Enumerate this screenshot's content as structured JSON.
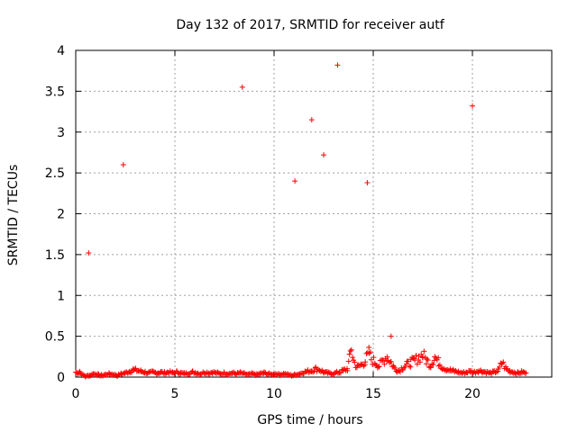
{
  "chart_data": {
    "type": "scatter",
    "title": "Day 132 of 2017, SRMTID for receiver autf",
    "xlabel": "GPS time / hours",
    "ylabel": "SRMTID / TECUs",
    "xlim": [
      0,
      24
    ],
    "ylim": [
      0,
      4
    ],
    "xticks": [
      0,
      5,
      10,
      15,
      20
    ],
    "yticks": [
      0,
      0.5,
      1,
      1.5,
      2,
      2.5,
      3,
      3.5,
      4
    ],
    "xtick_labels": [
      "0",
      "5",
      "10",
      "15",
      "20"
    ],
    "ytick_labels": [
      "0",
      "0.5",
      "1",
      "1.5",
      "2",
      "2.5",
      "3",
      "3.5",
      "4"
    ],
    "grid": true,
    "marker": "+",
    "color": "#ff0000",
    "outliers": [
      {
        "x": 0.65,
        "y": 1.52
      },
      {
        "x": 2.4,
        "y": 2.6
      },
      {
        "x": 8.4,
        "y": 3.55
      },
      {
        "x": 11.05,
        "y": 2.4
      },
      {
        "x": 11.9,
        "y": 3.15
      },
      {
        "x": 12.5,
        "y": 2.72
      },
      {
        "x": 13.2,
        "y": 3.82
      },
      {
        "x": 14.7,
        "y": 2.38
      },
      {
        "x": 15.9,
        "y": 0.5
      },
      {
        "x": 20.0,
        "y": 3.32
      }
    ],
    "baseline_series": [
      {
        "x": 0.0,
        "y": 0.06
      },
      {
        "x": 0.1,
        "y": 0.05
      },
      {
        "x": 0.2,
        "y": 0.07
      },
      {
        "x": 0.3,
        "y": 0.03
      },
      {
        "x": 0.5,
        "y": 0.01
      },
      {
        "x": 0.7,
        "y": 0.02
      },
      {
        "x": 0.9,
        "y": 0.04
      },
      {
        "x": 1.1,
        "y": 0.03
      },
      {
        "x": 1.3,
        "y": 0.02
      },
      {
        "x": 1.5,
        "y": 0.03
      },
      {
        "x": 1.7,
        "y": 0.04
      },
      {
        "x": 1.9,
        "y": 0.03
      },
      {
        "x": 2.1,
        "y": 0.02
      },
      {
        "x": 2.3,
        "y": 0.04
      },
      {
        "x": 2.5,
        "y": 0.05
      },
      {
        "x": 2.7,
        "y": 0.07
      },
      {
        "x": 2.9,
        "y": 0.09
      },
      {
        "x": 3.1,
        "y": 0.08
      },
      {
        "x": 3.3,
        "y": 0.07
      },
      {
        "x": 3.5,
        "y": 0.06
      },
      {
        "x": 3.7,
        "y": 0.05
      },
      {
        "x": 3.9,
        "y": 0.06
      },
      {
        "x": 4.1,
        "y": 0.05
      },
      {
        "x": 4.3,
        "y": 0.06
      },
      {
        "x": 4.5,
        "y": 0.05
      },
      {
        "x": 4.7,
        "y": 0.06
      },
      {
        "x": 4.9,
        "y": 0.05
      },
      {
        "x": 5.1,
        "y": 0.06
      },
      {
        "x": 5.3,
        "y": 0.05
      },
      {
        "x": 5.5,
        "y": 0.04
      },
      {
        "x": 5.7,
        "y": 0.05
      },
      {
        "x": 5.9,
        "y": 0.06
      },
      {
        "x": 6.1,
        "y": 0.05
      },
      {
        "x": 6.3,
        "y": 0.04
      },
      {
        "x": 6.5,
        "y": 0.06
      },
      {
        "x": 6.7,
        "y": 0.05
      },
      {
        "x": 6.9,
        "y": 0.06
      },
      {
        "x": 7.1,
        "y": 0.05
      },
      {
        "x": 7.3,
        "y": 0.04
      },
      {
        "x": 7.5,
        "y": 0.05
      },
      {
        "x": 7.7,
        "y": 0.04
      },
      {
        "x": 7.9,
        "y": 0.05
      },
      {
        "x": 8.1,
        "y": 0.04
      },
      {
        "x": 8.3,
        "y": 0.05
      },
      {
        "x": 8.5,
        "y": 0.04
      },
      {
        "x": 8.7,
        "y": 0.03
      },
      {
        "x": 8.9,
        "y": 0.04
      },
      {
        "x": 9.1,
        "y": 0.03
      },
      {
        "x": 9.3,
        "y": 0.04
      },
      {
        "x": 9.5,
        "y": 0.05
      },
      {
        "x": 9.7,
        "y": 0.04
      },
      {
        "x": 9.9,
        "y": 0.03
      },
      {
        "x": 10.1,
        "y": 0.04
      },
      {
        "x": 10.3,
        "y": 0.03
      },
      {
        "x": 10.5,
        "y": 0.04
      },
      {
        "x": 10.7,
        "y": 0.03
      },
      {
        "x": 10.9,
        "y": 0.02
      },
      {
        "x": 11.1,
        "y": 0.03
      },
      {
        "x": 11.3,
        "y": 0.04
      },
      {
        "x": 11.5,
        "y": 0.06
      },
      {
        "x": 11.7,
        "y": 0.07
      },
      {
        "x": 11.9,
        "y": 0.08
      },
      {
        "x": 12.1,
        "y": 0.1
      },
      {
        "x": 12.3,
        "y": 0.09
      },
      {
        "x": 12.5,
        "y": 0.06
      },
      {
        "x": 12.7,
        "y": 0.05
      },
      {
        "x": 12.9,
        "y": 0.04
      },
      {
        "x": 13.1,
        "y": 0.05
      },
      {
        "x": 13.3,
        "y": 0.06
      },
      {
        "x": 13.5,
        "y": 0.08
      },
      {
        "x": 13.7,
        "y": 0.1
      },
      {
        "x": 13.8,
        "y": 0.22
      },
      {
        "x": 13.85,
        "y": 0.3
      },
      {
        "x": 13.9,
        "y": 0.37
      },
      {
        "x": 14.0,
        "y": 0.2
      },
      {
        "x": 14.2,
        "y": 0.12
      },
      {
        "x": 14.4,
        "y": 0.15
      },
      {
        "x": 14.6,
        "y": 0.2
      },
      {
        "x": 14.8,
        "y": 0.3
      },
      {
        "x": 14.9,
        "y": 0.22
      },
      {
        "x": 15.1,
        "y": 0.18
      },
      {
        "x": 15.3,
        "y": 0.14
      },
      {
        "x": 15.5,
        "y": 0.2
      },
      {
        "x": 15.7,
        "y": 0.25
      },
      {
        "x": 15.9,
        "y": 0.18
      },
      {
        "x": 16.1,
        "y": 0.1
      },
      {
        "x": 16.3,
        "y": 0.08
      },
      {
        "x": 16.5,
        "y": 0.12
      },
      {
        "x": 16.7,
        "y": 0.15
      },
      {
        "x": 16.9,
        "y": 0.18
      },
      {
        "x": 17.1,
        "y": 0.2
      },
      {
        "x": 17.3,
        "y": 0.24
      },
      {
        "x": 17.5,
        "y": 0.27
      },
      {
        "x": 17.7,
        "y": 0.2
      },
      {
        "x": 17.9,
        "y": 0.15
      },
      {
        "x": 18.1,
        "y": 0.25
      },
      {
        "x": 18.3,
        "y": 0.18
      },
      {
        "x": 18.5,
        "y": 0.12
      },
      {
        "x": 18.7,
        "y": 0.1
      },
      {
        "x": 18.9,
        "y": 0.08
      },
      {
        "x": 19.1,
        "y": 0.07
      },
      {
        "x": 19.3,
        "y": 0.06
      },
      {
        "x": 19.5,
        "y": 0.05
      },
      {
        "x": 19.7,
        "y": 0.06
      },
      {
        "x": 19.9,
        "y": 0.07
      },
      {
        "x": 20.1,
        "y": 0.06
      },
      {
        "x": 20.3,
        "y": 0.08
      },
      {
        "x": 20.5,
        "y": 0.07
      },
      {
        "x": 20.7,
        "y": 0.06
      },
      {
        "x": 20.9,
        "y": 0.05
      },
      {
        "x": 21.1,
        "y": 0.06
      },
      {
        "x": 21.3,
        "y": 0.08
      },
      {
        "x": 21.5,
        "y": 0.18
      },
      {
        "x": 21.7,
        "y": 0.1
      },
      {
        "x": 21.9,
        "y": 0.07
      },
      {
        "x": 22.1,
        "y": 0.06
      },
      {
        "x": 22.3,
        "y": 0.05
      },
      {
        "x": 22.5,
        "y": 0.06
      },
      {
        "x": 22.7,
        "y": 0.05
      }
    ]
  }
}
